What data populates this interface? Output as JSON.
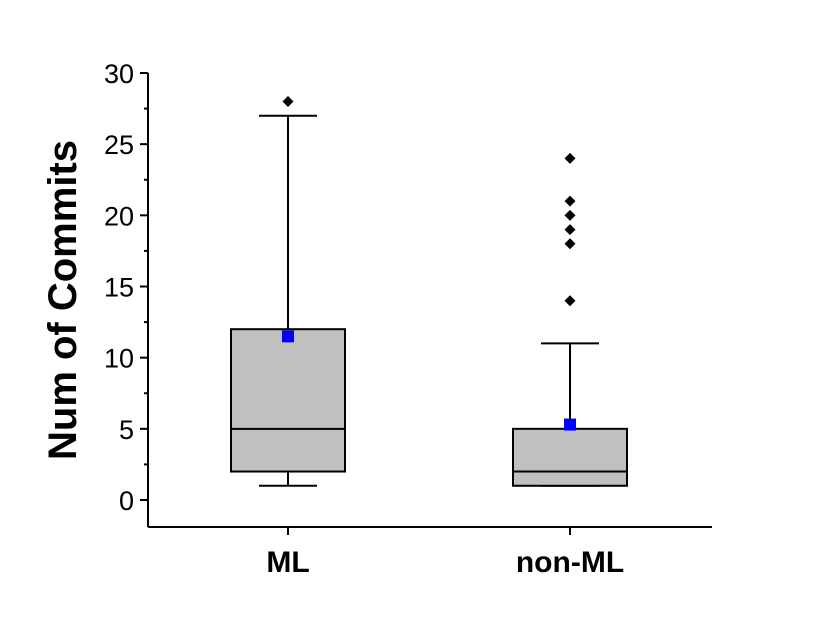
{
  "chart_data": {
    "type": "box",
    "title": "",
    "xlabel": "",
    "ylabel": "Num of Commits",
    "ylim": [
      0,
      30
    ],
    "yticks": [
      0,
      5,
      10,
      15,
      20,
      25,
      30
    ],
    "ytick_labels": [
      "0",
      "5",
      "10",
      "15",
      "20",
      "25",
      "30"
    ],
    "categories": [
      "ML",
      "non-ML"
    ],
    "boxes": [
      {
        "category": "ML",
        "q1": 2,
        "median": 5,
        "q3": 12,
        "whisker_low": 1,
        "whisker_high": 27,
        "mean": 11.5,
        "outliers": [
          28
        ]
      },
      {
        "category": "non-ML",
        "q1": 1,
        "median": 2,
        "q3": 5,
        "whisker_low": 1,
        "whisker_high": 11,
        "mean": 5.3,
        "outliers": [
          14,
          18,
          19,
          20,
          21,
          24
        ]
      }
    ],
    "grid": false,
    "legend": "none",
    "colors": {
      "box_fill": "#c0c0c0",
      "box_stroke": "#000000",
      "mean_marker": "#0000ff",
      "outlier_marker": "#000000",
      "axis": "#000000"
    }
  }
}
